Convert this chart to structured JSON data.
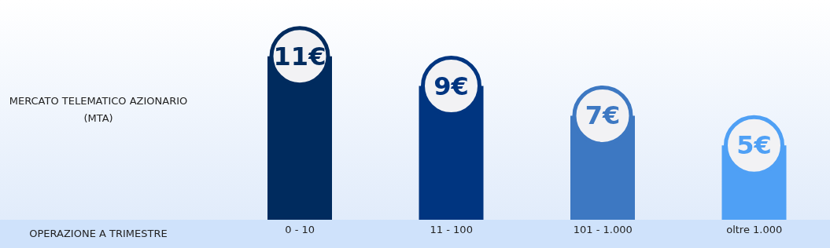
{
  "chart_data": {
    "type": "bar",
    "ylabel": "MERCATO TELEMATICO AZIONARIO (MTA)",
    "annotations": [
      "OPERAZIONE A TRIMESTRE"
    ],
    "categories": [
      "0 - 10",
      "11 - 100",
      "101 - 1.000",
      "oltre 1.000"
    ],
    "values": [
      11,
      9,
      7,
      5
    ],
    "colors": [
      "#002b5e",
      "#003580",
      "#3d78c2",
      "#4fa0f5"
    ],
    "value_labels": [
      "11€",
      "9€",
      "7€",
      "5€"
    ],
    "grid": false,
    "legend": false
  }
}
